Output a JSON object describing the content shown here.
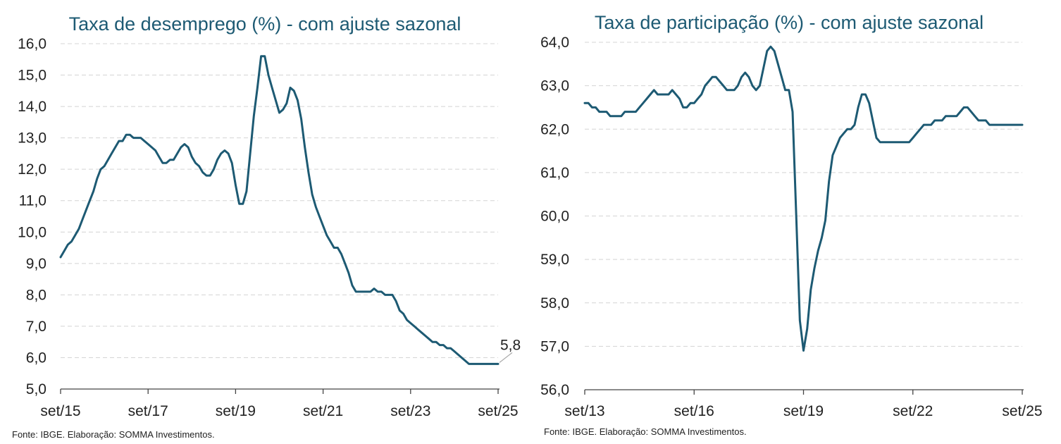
{
  "chart_data": [
    {
      "type": "line",
      "title": "Taxa de desemprego (%) - com ajuste sazonal",
      "xlabel": "",
      "ylabel": "",
      "ylim": [
        5.0,
        16.0
      ],
      "y_ticks": [
        "5,0",
        "6,0",
        "7,0",
        "8,0",
        "9,0",
        "10,0",
        "11,0",
        "12,0",
        "13,0",
        "14,0",
        "15,0",
        "16,0"
      ],
      "x_ticks": [
        "set/15",
        "set/17",
        "set/19",
        "set/21",
        "set/23",
        "set/25"
      ],
      "grid": true,
      "last_label": "5,8",
      "series": [
        {
          "name": "Taxa de desemprego",
          "x": [
            0,
            1,
            2,
            3,
            4,
            5,
            6,
            7,
            8,
            9,
            10,
            11,
            12,
            13,
            14,
            15,
            16,
            17,
            18,
            19,
            20,
            21,
            22,
            23,
            24,
            25,
            26,
            27,
            28,
            29,
            30,
            31,
            32,
            33,
            34,
            35,
            36,
            37,
            38,
            39,
            40,
            41,
            42,
            43,
            44,
            45,
            46,
            47,
            48,
            49,
            50,
            51,
            52,
            53,
            54,
            55,
            56,
            57,
            58,
            59,
            60,
            61,
            62,
            63,
            64,
            65,
            66,
            67,
            68,
            69,
            70,
            71,
            72,
            73,
            74,
            75,
            76,
            77,
            78,
            79,
            80,
            81,
            82,
            83,
            84,
            85,
            86,
            87,
            88,
            89,
            90,
            91,
            92,
            93,
            94,
            95,
            96,
            97,
            98,
            99,
            100,
            101,
            102,
            103,
            104,
            105,
            106,
            107,
            108,
            109,
            110,
            111,
            112,
            113,
            114,
            115,
            116,
            117,
            118,
            119,
            120
          ],
          "values": [
            9.2,
            9.4,
            9.6,
            9.7,
            9.9,
            10.1,
            10.4,
            10.7,
            11.0,
            11.3,
            11.7,
            12.0,
            12.1,
            12.3,
            12.5,
            12.7,
            12.9,
            12.9,
            13.1,
            13.1,
            13.0,
            13.0,
            13.0,
            12.9,
            12.8,
            12.7,
            12.6,
            12.4,
            12.2,
            12.2,
            12.3,
            12.3,
            12.5,
            12.7,
            12.8,
            12.7,
            12.4,
            12.2,
            12.1,
            11.9,
            11.8,
            11.8,
            12.0,
            12.3,
            12.5,
            12.6,
            12.5,
            12.2,
            11.5,
            10.9,
            10.9,
            11.3,
            12.5,
            13.7,
            14.6,
            15.6,
            15.6,
            15.0,
            14.6,
            14.2,
            13.8,
            13.9,
            14.1,
            14.6,
            14.5,
            14.2,
            13.6,
            12.7,
            11.9,
            11.2,
            10.8,
            10.5,
            10.2,
            9.9,
            9.7,
            9.5,
            9.5,
            9.3,
            9.0,
            8.7,
            8.3,
            8.1,
            8.1,
            8.1,
            8.1,
            8.1,
            8.2,
            8.1,
            8.1,
            8.0,
            8.0,
            8.0,
            7.8,
            7.5,
            7.4,
            7.2,
            7.1,
            7.0,
            6.9,
            6.8,
            6.7,
            6.6,
            6.5,
            6.5,
            6.4,
            6.4,
            6.3,
            6.3,
            6.2,
            6.1,
            6.0,
            5.9,
            5.8,
            5.8,
            5.8,
            5.8,
            5.8,
            5.8,
            5.8,
            5.8,
            5.8
          ]
        }
      ]
    },
    {
      "type": "line",
      "title": "Taxa de participação (%) - com ajuste sazonal",
      "xlabel": "",
      "ylabel": "",
      "ylim": [
        56.0,
        64.0
      ],
      "y_ticks": [
        "56,0",
        "57,0",
        "58,0",
        "59,0",
        "60,0",
        "61,0",
        "62,0",
        "63,0",
        "64,0"
      ],
      "x_ticks": [
        "set/13",
        "set/16",
        "set/19",
        "set/22",
        "set/25"
      ],
      "grid": true,
      "series": [
        {
          "name": "Taxa de participação",
          "x": [
            0,
            1,
            2,
            3,
            4,
            5,
            6,
            7,
            8,
            9,
            10,
            11,
            12,
            13,
            14,
            15,
            16,
            17,
            18,
            19,
            20,
            21,
            22,
            23,
            24,
            25,
            26,
            27,
            28,
            29,
            30,
            31,
            32,
            33,
            34,
            35,
            36,
            37,
            38,
            39,
            40,
            41,
            42,
            43,
            44,
            45,
            46,
            47,
            48,
            49,
            50,
            51,
            52,
            53,
            54,
            55,
            56,
            57,
            58,
            59,
            60,
            61,
            62,
            63,
            64,
            65,
            66,
            67,
            68,
            69,
            70,
            71,
            72,
            73,
            74,
            75,
            76,
            77,
            78,
            79,
            80,
            81,
            82,
            83,
            84,
            85,
            86,
            87,
            88,
            89,
            90,
            91,
            92,
            93,
            94,
            95,
            96,
            97,
            98,
            99,
            100,
            101,
            102,
            103,
            104,
            105,
            106,
            107,
            108,
            109,
            110,
            111,
            112,
            113,
            114,
            115,
            116,
            117,
            118,
            119,
            120
          ],
          "values": [
            62.6,
            62.6,
            62.5,
            62.5,
            62.4,
            62.4,
            62.4,
            62.3,
            62.3,
            62.3,
            62.3,
            62.4,
            62.4,
            62.4,
            62.4,
            62.5,
            62.6,
            62.7,
            62.8,
            62.9,
            62.8,
            62.8,
            62.8,
            62.8,
            62.9,
            62.8,
            62.7,
            62.5,
            62.5,
            62.6,
            62.6,
            62.7,
            62.8,
            63.0,
            63.1,
            63.2,
            63.2,
            63.1,
            63.0,
            62.9,
            62.9,
            62.9,
            63.0,
            63.2,
            63.3,
            63.2,
            63.0,
            62.9,
            63.0,
            63.4,
            63.8,
            63.9,
            63.8,
            63.5,
            63.2,
            62.9,
            62.9,
            62.4,
            60.0,
            57.6,
            56.9,
            57.4,
            58.3,
            58.8,
            59.2,
            59.5,
            59.9,
            60.8,
            61.4,
            61.6,
            61.8,
            61.9,
            62.0,
            62.0,
            62.1,
            62.5,
            62.8,
            62.8,
            62.6,
            62.2,
            61.8,
            61.7,
            61.7,
            61.7,
            61.7,
            61.7,
            61.7,
            61.7,
            61.7,
            61.7,
            61.8,
            61.9,
            62.0,
            62.1,
            62.1,
            62.1,
            62.2,
            62.2,
            62.2,
            62.3,
            62.3,
            62.3,
            62.3,
            62.4,
            62.5,
            62.5,
            62.4,
            62.3,
            62.2,
            62.2,
            62.2,
            62.1,
            62.1,
            62.1,
            62.1,
            62.1,
            62.1,
            62.1,
            62.1,
            62.1,
            62.1
          ]
        }
      ]
    }
  ],
  "sources": {
    "left": "Fonte: IBGE. Elaboração: SOMMA Investimentos.",
    "right": "Fonte: IBGE. Elaboração: SOMMA Investimentos."
  }
}
